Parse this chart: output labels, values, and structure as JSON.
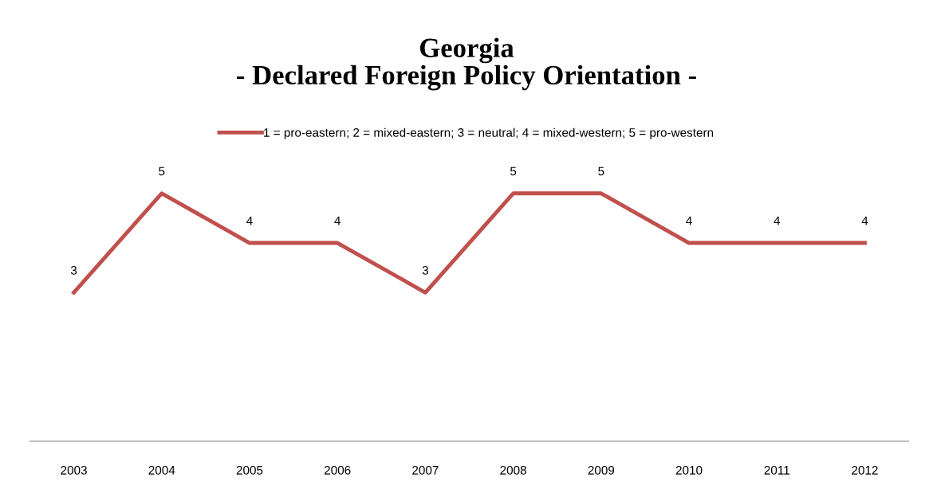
{
  "chart_data": {
    "type": "line",
    "title": "Georgia\n- Declared Foreign Policy Orientation -",
    "categories": [
      "2003",
      "2004",
      "2005",
      "2006",
      "2007",
      "2008",
      "2009",
      "2010",
      "2011",
      "2012"
    ],
    "series": [
      {
        "name": "1 = pro-eastern; 2 = mixed-eastern; 3 = neutral; 4 = mixed-western; 5 = pro-western",
        "color": "#c0504d",
        "values": [
          3,
          5,
          4,
          4,
          3,
          5,
          5,
          4,
          4,
          4
        ]
      }
    ],
    "tick_labels": "x",
    "data_labels": true,
    "legend": "top",
    "grid": false,
    "marker": "none",
    "line_style": "solid"
  }
}
